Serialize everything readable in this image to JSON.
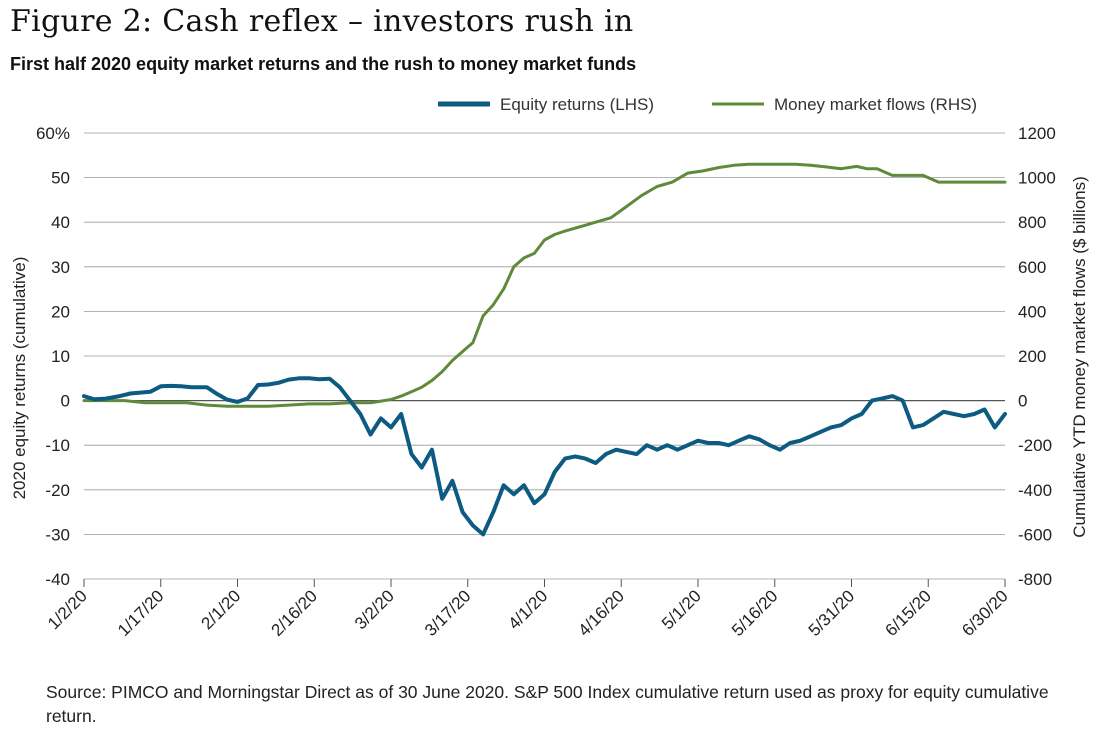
{
  "title": "Figure 2: Cash reflex – investors rush in",
  "subtitle": "First half 2020 equity market returns and the rush to money market funds",
  "source": "Source: PIMCO and Morningstar Direct as of 30 June 2020. S&P 500 Index cumulative return used as proxy for equity cumulative return.",
  "chart_data": {
    "type": "line",
    "x_tick_labels": [
      "1/2/20",
      "1/17/20",
      "2/1/20",
      "2/16/20",
      "3/2/20",
      "3/17/20",
      "4/1/20",
      "4/16/20",
      "5/1/20",
      "5/16/20",
      "5/31/20",
      "6/15/20",
      "6/30/20"
    ],
    "ylabel_left": "2020 equity returns (cumulative)",
    "ylabel_right": "Cumulative YTD money market flows ($ billions)",
    "ylim_left": [
      -40,
      60
    ],
    "ylim_right": [
      -800,
      1200
    ],
    "yticks_left": [
      "60%",
      "50",
      "40",
      "30",
      "20",
      "10",
      "0",
      "-10",
      "-20",
      "-30",
      "-40"
    ],
    "yticks_right": [
      "1200",
      "1000",
      "800",
      "600",
      "400",
      "200",
      "0",
      "-200",
      "-400",
      "-600",
      "-800"
    ],
    "grid": true,
    "legend_position": "top-right",
    "series": [
      {
        "name": "Equity returns (LHS)",
        "axis": "left",
        "color": "#0d5a82",
        "x": [
          "1/2/20",
          "1/4/20",
          "1/6/20",
          "1/9/20",
          "1/11/20",
          "1/13/20",
          "1/15/20",
          "1/17/20",
          "1/19/20",
          "1/21/20",
          "1/23/20",
          "1/26/20",
          "1/28/20",
          "1/30/20",
          "2/1/20",
          "2/3/20",
          "2/5/20",
          "2/7/20",
          "2/9/20",
          "2/11/20",
          "2/13/20",
          "2/15/20",
          "2/17/20",
          "2/19/20",
          "2/21/20",
          "2/23/20",
          "2/25/20",
          "2/27/20",
          "2/29/20",
          "3/2/20",
          "3/4/20",
          "3/6/20",
          "3/8/20",
          "3/10/20",
          "3/12/20",
          "3/14/20",
          "3/16/20",
          "3/18/20",
          "3/20/20",
          "3/22/20",
          "3/24/20",
          "3/26/20",
          "3/28/20",
          "3/30/20",
          "4/1/20",
          "4/3/20",
          "4/5/20",
          "4/7/20",
          "4/9/20",
          "4/11/20",
          "4/13/20",
          "4/15/20",
          "4/17/20",
          "4/19/20",
          "4/21/20",
          "4/23/20",
          "4/25/20",
          "4/27/20",
          "4/29/20",
          "5/1/20",
          "5/3/20",
          "5/5/20",
          "5/7/20",
          "5/9/20",
          "5/11/20",
          "5/13/20",
          "5/15/20",
          "5/17/20",
          "5/19/20",
          "5/21/20",
          "5/23/20",
          "5/25/20",
          "5/27/20",
          "5/29/20",
          "5/31/20",
          "6/2/20",
          "6/4/20",
          "6/6/20",
          "6/8/20",
          "6/10/20",
          "6/12/20",
          "6/14/20",
          "6/16/20",
          "6/18/20",
          "6/20/20",
          "6/22/20",
          "6/24/20",
          "6/26/20",
          "6/28/20",
          "6/30/20"
        ],
        "values": [
          1,
          0.3,
          0.4,
          1,
          1.6,
          1.8,
          2,
          3.2,
          3.3,
          3.2,
          3,
          3,
          1.5,
          0.2,
          -0.3,
          0.5,
          3.5,
          3.6,
          4,
          4.7,
          5,
          5,
          4.8,
          4.9,
          3,
          0,
          -3,
          -7.6,
          -4,
          -6,
          -3,
          -12,
          -15,
          -11,
          -22,
          -18,
          -25,
          -28,
          -30,
          -25,
          -19,
          -21,
          -19,
          -23,
          -21,
          -16,
          -13,
          -12.5,
          -13,
          -14,
          -12,
          -11,
          -11.5,
          -12,
          -10,
          -11,
          -10,
          -11,
          -10,
          -9,
          -9.5,
          -9.5,
          -10,
          -9,
          -8,
          -8.7,
          -10,
          -11,
          -9.5,
          -9,
          -8,
          -7,
          -6,
          -5.5,
          -4,
          -3,
          0,
          0.5,
          1,
          0,
          -6,
          -5.5,
          -4,
          -2.5,
          -3,
          -3.5,
          -3,
          -2,
          -6,
          -3
        ]
      },
      {
        "name": "Money market flows (RHS)",
        "axis": "right",
        "color": "#5e8a3a",
        "x": [
          "1/2/20",
          "1/6/20",
          "1/10/20",
          "1/14/20",
          "1/18/20",
          "1/22/20",
          "1/26/20",
          "1/30/20",
          "2/3/20",
          "2/7/20",
          "2/11/20",
          "2/15/20",
          "2/19/20",
          "2/23/20",
          "2/27/20",
          "3/2/20",
          "3/4/20",
          "3/6/20",
          "3/8/20",
          "3/10/20",
          "3/12/20",
          "3/14/20",
          "3/16/20",
          "3/18/20",
          "3/20/20",
          "3/22/20",
          "3/24/20",
          "3/26/20",
          "3/28/20",
          "3/30/20",
          "4/1/20",
          "4/3/20",
          "4/5/20",
          "4/8/20",
          "4/11/20",
          "4/14/20",
          "4/17/20",
          "4/20/20",
          "4/23/20",
          "4/26/20",
          "4/29/20",
          "5/2/20",
          "5/5/20",
          "5/8/20",
          "5/11/20",
          "5/14/20",
          "5/17/20",
          "5/20/20",
          "5/23/20",
          "5/26/20",
          "5/29/20",
          "6/1/20",
          "6/3/20",
          "6/5/20",
          "6/8/20",
          "6/11/20",
          "6/14/20",
          "6/17/20",
          "6/20/20",
          "6/23/20",
          "6/26/20",
          "6/30/20"
        ],
        "values": [
          0,
          0,
          0,
          -10,
          -10,
          -10,
          -20,
          -25,
          -25,
          -25,
          -20,
          -15,
          -15,
          -10,
          -10,
          5,
          20,
          40,
          60,
          90,
          130,
          180,
          220,
          260,
          380,
          430,
          500,
          600,
          640,
          660,
          720,
          745,
          760,
          780,
          800,
          820,
          870,
          920,
          960,
          980,
          1020,
          1030,
          1045,
          1055,
          1060,
          1060,
          1060,
          1060,
          1055,
          1048,
          1040,
          1050,
          1040,
          1040,
          1010,
          1010,
          1010,
          980,
          980,
          980,
          980,
          980
        ]
      }
    ]
  }
}
